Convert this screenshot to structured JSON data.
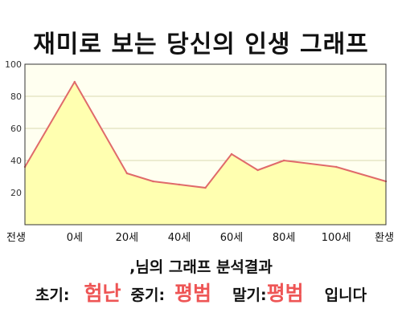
{
  "title": "재미로 보는 당신의 인생 그래프",
  "colors": {
    "line": "#e06a6a",
    "fill": "#ffffb0",
    "plot_bg": "#fffff0",
    "grid": "#d8d8b0",
    "axis": "#333333",
    "result_value": "#ee5555"
  },
  "chart_data": {
    "type": "area",
    "title": "",
    "xlabel": "",
    "ylabel": "",
    "ylim": [
      0,
      100
    ],
    "y_ticks": [
      20,
      40,
      60,
      80,
      100
    ],
    "x_ticks": [
      "전생",
      "0세",
      "20세",
      "40세",
      "60세",
      "80세",
      "100세",
      "환생"
    ],
    "grid": true,
    "legend": "none",
    "series": [
      {
        "points": [
          {
            "x": "전생",
            "y": 36
          },
          {
            "x": "0세",
            "y": 89
          },
          {
            "x": "20세",
            "y": 32
          },
          {
            "x": "30세",
            "y": 27
          },
          {
            "x": "40세",
            "y": 25
          },
          {
            "x": "50세",
            "y": 23
          },
          {
            "x": "60세",
            "y": 44
          },
          {
            "x": "70세",
            "y": 34
          },
          {
            "x": "80세",
            "y": 40
          },
          {
            "x": "100세",
            "y": 36
          },
          {
            "x": "환생",
            "y": 27
          }
        ]
      }
    ]
  },
  "analysis": {
    "heading": ",님의 그래프 분석결과",
    "early_label": "초기:",
    "early_value": "험난",
    "middle_label": "중기:",
    "middle_value": "평범",
    "late_label": "말기:",
    "late_value": "평범",
    "suffix": "입니다"
  }
}
